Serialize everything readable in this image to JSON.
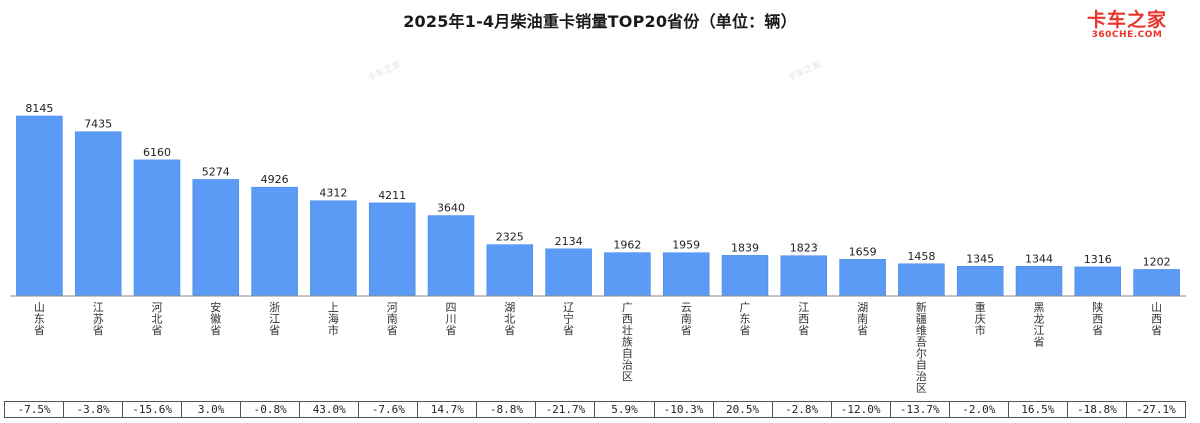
{
  "chart_data": {
    "type": "bar",
    "title": "2025年1-4月柴油重卡销量TOP20省份（单位：辆）",
    "categories": [
      "山东省",
      "江苏省",
      "河北省",
      "安徽省",
      "浙江省",
      "上海市",
      "河南省",
      "四川省",
      "湖北省",
      "辽宁省",
      "广西壮族自治区",
      "云南省",
      "广东省",
      "江西省",
      "湖南省",
      "新疆维吾尔自治区",
      "重庆市",
      "黑龙江省",
      "陕西省",
      "山西省"
    ],
    "values": [
      8145,
      7435,
      6160,
      5274,
      4926,
      4312,
      4211,
      3640,
      2325,
      2134,
      1962,
      1959,
      1839,
      1823,
      1659,
      1458,
      1345,
      1344,
      1316,
      1202
    ],
    "growth": [
      "-7.5%",
      "-3.8%",
      "-15.6%",
      "3.0%",
      "-0.8%",
      "43.0%",
      "-7.6%",
      "14.7%",
      "-8.8%",
      "-21.7%",
      "5.9%",
      "-10.3%",
      "20.5%",
      "-2.8%",
      "-12.0%",
      "-13.7%",
      "-2.0%",
      "16.5%",
      "-18.8%",
      "-27.1%"
    ],
    "xlabel": "",
    "ylabel": "",
    "ylim": [
      0,
      8145
    ],
    "grid": false,
    "legend": "none",
    "bar_color": "#5b9bf6"
  },
  "logo": {
    "main": "卡车之家",
    "sub": "360CHE.COM",
    "color": "#e8342a"
  },
  "watermark": "卡车之家"
}
